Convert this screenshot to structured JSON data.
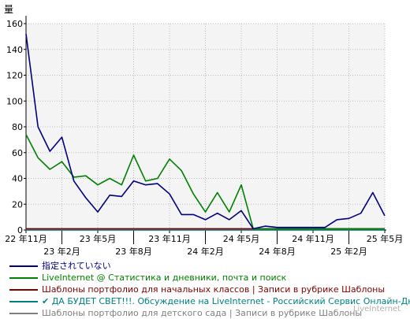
{
  "chart_data": {
    "type": "line",
    "ylabel": "量",
    "ylim": [
      0,
      160
    ],
    "yticks": [
      0,
      20,
      40,
      60,
      80,
      100,
      120,
      140,
      160
    ],
    "grid": true,
    "legend_position": "bottom",
    "x_tick_labels": [
      {
        "label": "22 年11月",
        "idx": 0,
        "row": 1
      },
      {
        "label": "23 年2月",
        "idx": 3,
        "row": 2
      },
      {
        "label": "23 年5月",
        "idx": 6,
        "row": 1
      },
      {
        "label": "23 年8月",
        "idx": 9,
        "row": 2
      },
      {
        "label": "23 年11月",
        "idx": 12,
        "row": 1
      },
      {
        "label": "24 年2月",
        "idx": 15,
        "row": 2
      },
      {
        "label": "24 年5月",
        "idx": 18,
        "row": 1
      },
      {
        "label": "24 年8月",
        "idx": 21,
        "row": 2
      },
      {
        "label": "24 年11月",
        "idx": 24,
        "row": 1
      },
      {
        "label": "25 年2月",
        "idx": 27,
        "row": 2
      },
      {
        "label": "25 年5月",
        "idx": 30,
        "row": 1
      }
    ],
    "series": [
      {
        "name": "指定されていない",
        "color": "#000080",
        "values": [
          152,
          80,
          61,
          72,
          38,
          25,
          14,
          27,
          26,
          38,
          35,
          36,
          28,
          12,
          12,
          8,
          13,
          8,
          15,
          1,
          3,
          2,
          2,
          2,
          2,
          2,
          8,
          9,
          13,
          29,
          11
        ]
      },
      {
        "name": "LiveInternet @ Статистика и дневники, почта и поиск",
        "color": "#008000",
        "values": [
          74,
          56,
          47,
          53,
          41,
          42,
          35,
          40,
          35,
          58,
          38,
          40,
          55,
          46,
          28,
          14,
          29,
          14,
          35,
          1,
          1,
          1,
          1,
          1,
          1,
          1,
          1,
          1,
          1,
          1,
          1
        ]
      },
      {
        "name": "Шаблоны портфолио для начальных классов | Записи в рубрике Шаблоны",
        "color": "#800000",
        "values": [
          1,
          1,
          1,
          1,
          1,
          1,
          1,
          1,
          1,
          1,
          1,
          1,
          1,
          1,
          1,
          1,
          1,
          1,
          1,
          1,
          1,
          1,
          1,
          1,
          1,
          1,
          1,
          1,
          1,
          1,
          1
        ]
      },
      {
        "name": "✔ ДА БУДЕТ СВЕТ!!!. Обсуждение на LiveInternet - Российский Сервис Онлайн-Дневников",
        "color": "#008080",
        "values": [
          0,
          0,
          0,
          0,
          0,
          0,
          0,
          0,
          0,
          0,
          0,
          0,
          0,
          0,
          0,
          0,
          0,
          0,
          0,
          0,
          0,
          0,
          0,
          0,
          0,
          0,
          0,
          0,
          0,
          0,
          0
        ]
      },
      {
        "name": "Шаблоны портфолио для детского сада | Записи в рубрике Шаблоны",
        "color": "#808080",
        "values": [
          0,
          0,
          0,
          0,
          0,
          0,
          0,
          0,
          0,
          0,
          0,
          0,
          0,
          0,
          0,
          0,
          0,
          0,
          0,
          0,
          0,
          0,
          0,
          0,
          0,
          0,
          0,
          0,
          0,
          0,
          0
        ]
      }
    ]
  },
  "watermark": "LiveInternet"
}
